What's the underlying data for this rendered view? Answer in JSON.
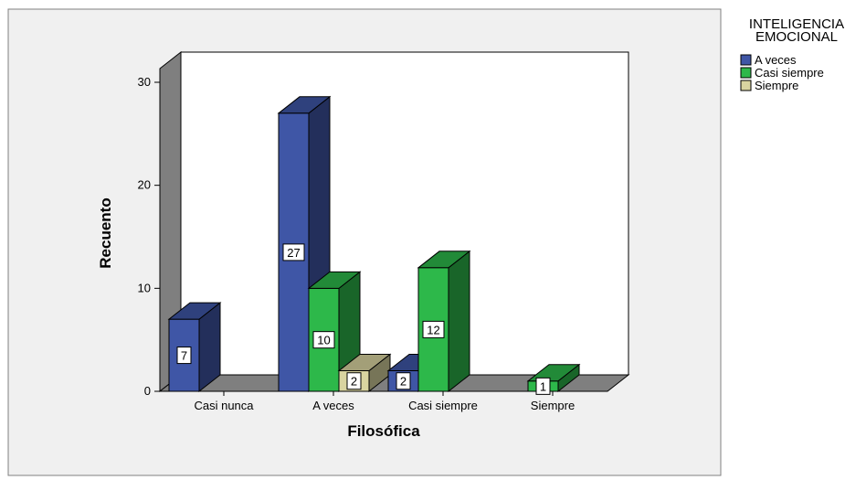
{
  "chart_data": {
    "type": "bar",
    "title": "",
    "xlabel": "Filosófica",
    "ylabel": "Recuento",
    "categories": [
      "Casi nunca",
      "A veces",
      "Casi siempre",
      "Siempre"
    ],
    "series": [
      {
        "name": "A veces",
        "values": [
          7,
          27,
          2,
          0
        ],
        "color": "#3f56a6"
      },
      {
        "name": "Casi siempre",
        "values": [
          0,
          10,
          12,
          1
        ],
        "color": "#2db84a"
      },
      {
        "name": "Siempre",
        "values": [
          0,
          2,
          0,
          0
        ],
        "color": "#d9d4a0"
      }
    ],
    "yticks": [
      0,
      10,
      20,
      30
    ],
    "ylim": [
      0,
      30
    ],
    "legend_title": "INTELIGENCIA EMOCIONAL",
    "legend_position": "top-right",
    "grid": false
  }
}
